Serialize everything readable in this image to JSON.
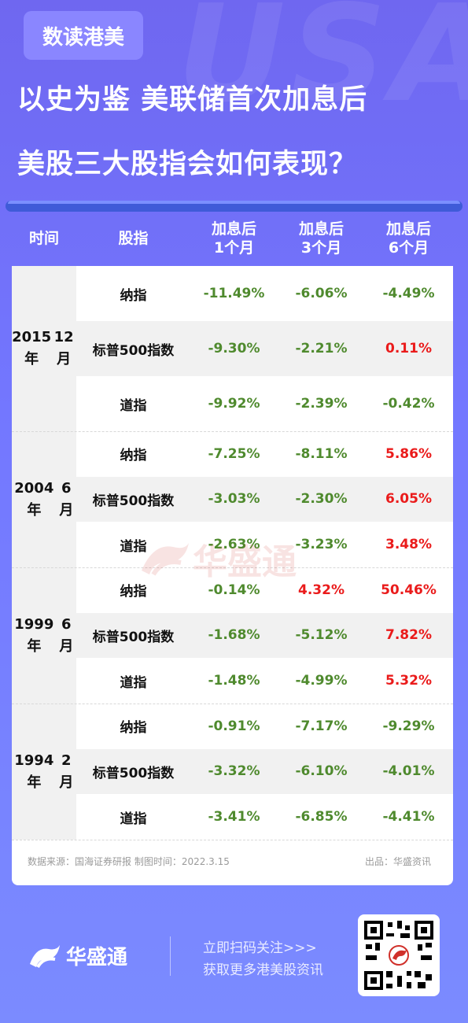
{
  "background_text": "USA",
  "brand_tag": "数读港美",
  "headline": {
    "line1": "以史为鉴 美联储首次加息后",
    "line2": "美股三大股指会如何表现？"
  },
  "table": {
    "headers": {
      "time": "时间",
      "index": "股指",
      "m1": [
        "加息后",
        "1个月"
      ],
      "m3": [
        "加息后",
        "3个月"
      ],
      "m6": [
        "加息后",
        "6个月"
      ]
    },
    "groups": [
      {
        "date": [
          "2015年",
          "12月"
        ],
        "rows": [
          {
            "name": "纳指",
            "m1": "-11.49%",
            "m3": "-6.06%",
            "m6": "-4.49%"
          },
          {
            "name": "标普500指数",
            "m1": "-9.30%",
            "m3": "-2.21%",
            "m6": "0.11%"
          },
          {
            "name": "道指",
            "m1": "-9.92%",
            "m3": "-2.39%",
            "m6": "-0.42%"
          }
        ]
      },
      {
        "date": [
          "2004年",
          "6月"
        ],
        "rows": [
          {
            "name": "纳指",
            "m1": "-7.25%",
            "m3": "-8.11%",
            "m6": "5.86%"
          },
          {
            "name": "标普500指数",
            "m1": "-3.03%",
            "m3": "-2.30%",
            "m6": "6.05%"
          },
          {
            "name": "道指",
            "m1": "-2.63%",
            "m3": "-3.23%",
            "m6": "3.48%"
          }
        ]
      },
      {
        "date": [
          "1999年",
          "6月"
        ],
        "rows": [
          {
            "name": "纳指",
            "m1": "-0.14%",
            "m3": "4.32%",
            "m6": "50.46%"
          },
          {
            "name": "标普500指数",
            "m1": "-1.68%",
            "m3": "-5.12%",
            "m6": "7.82%"
          },
          {
            "name": "道指",
            "m1": "-1.48%",
            "m3": "-4.99%",
            "m6": "5.32%"
          }
        ]
      },
      {
        "date": [
          "1994年",
          "2月"
        ],
        "rows": [
          {
            "name": "纳指",
            "m1": "-0.91%",
            "m3": "-7.17%",
            "m6": "-9.29%"
          },
          {
            "name": "标普500指数",
            "m1": "-3.32%",
            "m3": "-6.10%",
            "m6": "-4.01%"
          },
          {
            "name": "道指",
            "m1": "-3.41%",
            "m3": "-6.85%",
            "m6": "-4.41%"
          }
        ]
      }
    ],
    "source_note": "数据来源：国海证券研报 制图时间：2022.3.15",
    "producer_note": "出品：华盛资讯"
  },
  "watermark_text": "华盛通",
  "footer": {
    "logo_text": "华盛通",
    "cta_line1": "立即扫码关注>>>",
    "cta_line2": "获取更多港美股资讯"
  },
  "colors": {
    "background": "#7377ff",
    "negative": "#4f8a2e",
    "positive": "#ea1b1b",
    "brand_red": "#d0302a"
  },
  "icons": [
    "huasheng-logo-icon",
    "qr-code-icon"
  ]
}
